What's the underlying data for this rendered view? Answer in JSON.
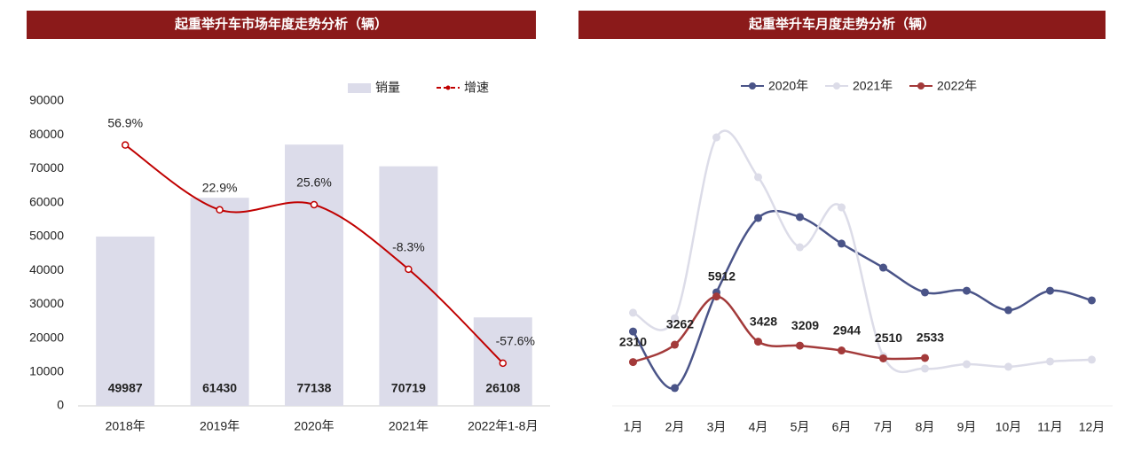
{
  "chart_data": [
    {
      "type": "bar",
      "title": "起重举升车市场年度走势分析（辆）",
      "categories": [
        "2018年",
        "2019年",
        "2020年",
        "2021年",
        "2022年1-8月"
      ],
      "series": [
        {
          "name": "销量",
          "type": "bar",
          "color": "#dcdcea",
          "values": [
            49987,
            61430,
            77138,
            70719,
            26108
          ]
        },
        {
          "name": "增速",
          "type": "line",
          "axis": "y2",
          "color": "#c00000",
          "values": [
            56.9,
            22.9,
            25.6,
            -8.3,
            -57.6
          ],
          "value_labels": [
            "56.9%",
            "22.9%",
            "25.6%",
            "-8.3%",
            "-57.6%"
          ]
        }
      ],
      "ylim": [
        0,
        90000
      ],
      "yticks": [
        0,
        10000,
        20000,
        30000,
        40000,
        50000,
        60000,
        70000,
        80000,
        90000
      ],
      "y2lim": [
        -80,
        80
      ],
      "legend": "top"
    },
    {
      "type": "line",
      "title": "起重举升车月度走势分析（辆）",
      "categories": [
        "1月",
        "2月",
        "3月",
        "4月",
        "5月",
        "6月",
        "7月",
        "8月",
        "9月",
        "10月",
        "11月",
        "12月"
      ],
      "series": [
        {
          "name": "2020年",
          "color": "#4a5488",
          "values": [
            3990,
            880,
            6140,
            10230,
            10280,
            8820,
            7500,
            6140,
            6230,
            5160,
            6230,
            5700
          ]
        },
        {
          "name": "2021年",
          "color": "#dcdce8",
          "values": [
            5020,
            4720,
            14660,
            12470,
            8620,
            10810,
            2630,
            1950,
            2190,
            2050,
            2340,
            2440
          ]
        },
        {
          "name": "2022年",
          "color": "#a33a3a",
          "values": [
            2310,
            3262,
            5912,
            3428,
            3209,
            2944,
            2510,
            2533,
            null,
            null,
            null,
            null
          ],
          "labels": true
        }
      ],
      "ylim": [
        0,
        16000
      ],
      "legend": "top"
    }
  ]
}
